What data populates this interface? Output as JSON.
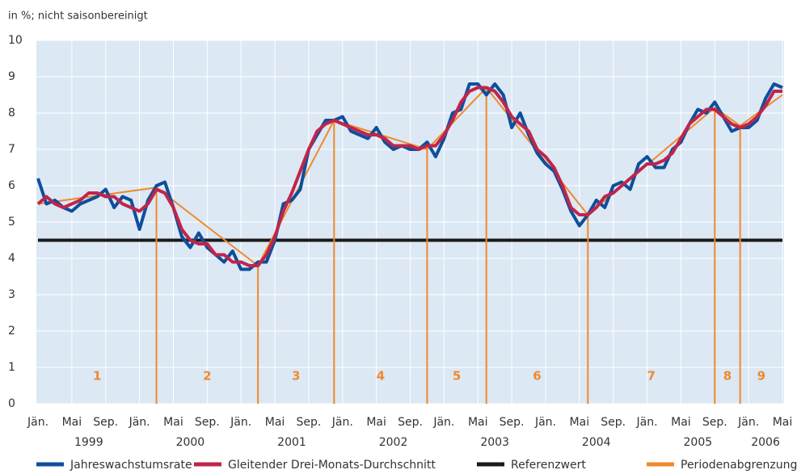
{
  "chart_data": {
    "type": "line",
    "subtitle": "in %; nicht saisonbereinigt",
    "x": [
      "1999-01",
      "1999-02",
      "1999-03",
      "1999-04",
      "1999-05",
      "1999-06",
      "1999-07",
      "1999-08",
      "1999-09",
      "1999-10",
      "1999-11",
      "1999-12",
      "2000-01",
      "2000-02",
      "2000-03",
      "2000-04",
      "2000-05",
      "2000-06",
      "2000-07",
      "2000-08",
      "2000-09",
      "2000-10",
      "2000-11",
      "2000-12",
      "2001-01",
      "2001-02",
      "2001-03",
      "2001-04",
      "2001-05",
      "2001-06",
      "2001-07",
      "2001-08",
      "2001-09",
      "2001-10",
      "2001-11",
      "2001-12",
      "2002-01",
      "2002-02",
      "2002-03",
      "2002-04",
      "2002-05",
      "2002-06",
      "2002-07",
      "2002-08",
      "2002-09",
      "2002-10",
      "2002-11",
      "2002-12",
      "2003-01",
      "2003-02",
      "2003-03",
      "2003-04",
      "2003-05",
      "2003-06",
      "2003-07",
      "2003-08",
      "2003-09",
      "2003-10",
      "2003-11",
      "2003-12",
      "2004-01",
      "2004-02",
      "2004-03",
      "2004-04",
      "2004-05",
      "2004-06",
      "2004-07",
      "2004-08",
      "2004-09",
      "2004-10",
      "2004-11",
      "2004-12",
      "2005-01",
      "2005-02",
      "2005-03",
      "2005-04",
      "2005-05",
      "2005-06",
      "2005-07",
      "2005-08",
      "2005-09",
      "2005-10",
      "2005-11",
      "2005-12",
      "2006-01",
      "2006-02",
      "2006-03",
      "2006-04",
      "2006-05"
    ],
    "series": [
      {
        "name": "Jahreswachstumsrate",
        "color": "#0e4f9c",
        "values": [
          6.2,
          5.5,
          5.6,
          5.4,
          5.3,
          5.5,
          5.6,
          5.7,
          5.9,
          5.4,
          5.7,
          5.6,
          4.8,
          5.6,
          6.0,
          6.1,
          5.4,
          4.6,
          4.3,
          4.7,
          4.3,
          4.1,
          3.9,
          4.2,
          3.7,
          3.7,
          3.9,
          3.9,
          4.5,
          5.5,
          5.6,
          5.9,
          7.0,
          7.4,
          7.8,
          7.8,
          7.9,
          7.5,
          7.4,
          7.3,
          7.6,
          7.2,
          7.0,
          7.1,
          7.0,
          7.0,
          7.2,
          6.8,
          7.3,
          8.0,
          8.1,
          8.8,
          8.8,
          8.5,
          8.8,
          8.5,
          7.6,
          8.0,
          7.4,
          6.9,
          6.6,
          6.4,
          5.9,
          5.3,
          4.9,
          5.2,
          5.6,
          5.4,
          6.0,
          6.1,
          5.9,
          6.6,
          6.8,
          6.5,
          6.5,
          7.0,
          7.2,
          7.7,
          8.1,
          8.0,
          8.3,
          7.9,
          7.5,
          7.6,
          7.6,
          7.8,
          8.4,
          8.8,
          8.7
        ]
      },
      {
        "name": "Gleitender Drei-Monats-Durchschnitt",
        "color": "#c0254a",
        "values": [
          5.5,
          5.7,
          5.5,
          5.4,
          5.5,
          5.6,
          5.8,
          5.8,
          5.7,
          5.7,
          5.5,
          5.4,
          5.3,
          5.5,
          5.9,
          5.8,
          5.4,
          4.8,
          4.5,
          4.4,
          4.4,
          4.1,
          4.1,
          3.9,
          3.9,
          3.8,
          3.8,
          4.1,
          4.6,
          5.3,
          5.8,
          6.4,
          7.0,
          7.5,
          7.7,
          7.8,
          7.7,
          7.6,
          7.5,
          7.4,
          7.4,
          7.3,
          7.1,
          7.1,
          7.1,
          7.0,
          7.1,
          7.1,
          7.4,
          7.8,
          8.3,
          8.6,
          8.7,
          8.7,
          8.6,
          8.3,
          7.9,
          7.7,
          7.5,
          7.0,
          6.8,
          6.5,
          6.0,
          5.4,
          5.2,
          5.2,
          5.4,
          5.7,
          5.8,
          6.0,
          6.2,
          6.4,
          6.6,
          6.6,
          6.7,
          6.9,
          7.3,
          7.7,
          7.9,
          8.1,
          8.1,
          7.9,
          7.7,
          7.6,
          7.7,
          7.9,
          8.2,
          8.6,
          8.6
        ]
      },
      {
        "name": "Referenzwert",
        "color": "#1a1a1a",
        "x": [
          "1999-01",
          "2006-05"
        ],
        "values": [
          4.5,
          4.5
        ]
      },
      {
        "name": "Periodenabgrenzung",
        "color": "#f0892b",
        "x": [
          "1999-01",
          "2000-03",
          "2001-03",
          "2001-12",
          "2002-11",
          "2003-06",
          "2004-06",
          "2005-09",
          "2005-12",
          "2006-05"
        ],
        "values": [
          5.5,
          5.95,
          3.8,
          7.8,
          7.0,
          8.7,
          5.2,
          8.15,
          7.65,
          8.5
        ]
      }
    ],
    "period_labels": [
      "1",
      "2",
      "3",
      "4",
      "5",
      "6",
      "7",
      "8",
      "9"
    ],
    "ylim": [
      0,
      10
    ],
    "yticks": [
      0,
      1,
      2,
      3,
      4,
      5,
      6,
      7,
      8,
      9,
      10
    ],
    "grid": true,
    "xticks": [
      {
        "value": "1999-01",
        "label": "Jän."
      },
      {
        "value": "1999-05",
        "label": "Mai"
      },
      {
        "value": "1999-09",
        "label": "Sep."
      },
      {
        "value": "2000-01",
        "label": "Jän."
      },
      {
        "value": "2000-05",
        "label": "Mai"
      },
      {
        "value": "2000-09",
        "label": "Sep."
      },
      {
        "value": "2001-01",
        "label": "Jän."
      },
      {
        "value": "2001-05",
        "label": "Mai"
      },
      {
        "value": "2001-09",
        "label": "Sep."
      },
      {
        "value": "2002-01",
        "label": "Jän."
      },
      {
        "value": "2002-05",
        "label": "Mai"
      },
      {
        "value": "2002-09",
        "label": "Sep."
      },
      {
        "value": "2003-01",
        "label": "Jän."
      },
      {
        "value": "2003-05",
        "label": "Mai"
      },
      {
        "value": "2003-09",
        "label": "Sep."
      },
      {
        "value": "2004-01",
        "label": "Jän."
      },
      {
        "value": "2004-05",
        "label": "Mai"
      },
      {
        "value": "2004-09",
        "label": "Sep."
      },
      {
        "value": "2005-01",
        "label": "Jän."
      },
      {
        "value": "2005-05",
        "label": "Mai"
      },
      {
        "value": "2005-09",
        "label": "Sep."
      },
      {
        "value": "2006-01",
        "label": "Jän."
      },
      {
        "value": "2006-05",
        "label": "Mai"
      }
    ],
    "year_labels": [
      {
        "value": "1999-07",
        "label": "1999"
      },
      {
        "value": "2000-07",
        "label": "2000"
      },
      {
        "value": "2001-07",
        "label": "2001"
      },
      {
        "value": "2002-07",
        "label": "2002"
      },
      {
        "value": "2003-07",
        "label": "2003"
      },
      {
        "value": "2004-07",
        "label": "2004"
      },
      {
        "value": "2005-07",
        "label": "2005"
      },
      {
        "value": "2006-03",
        "label": "2006"
      }
    ]
  }
}
